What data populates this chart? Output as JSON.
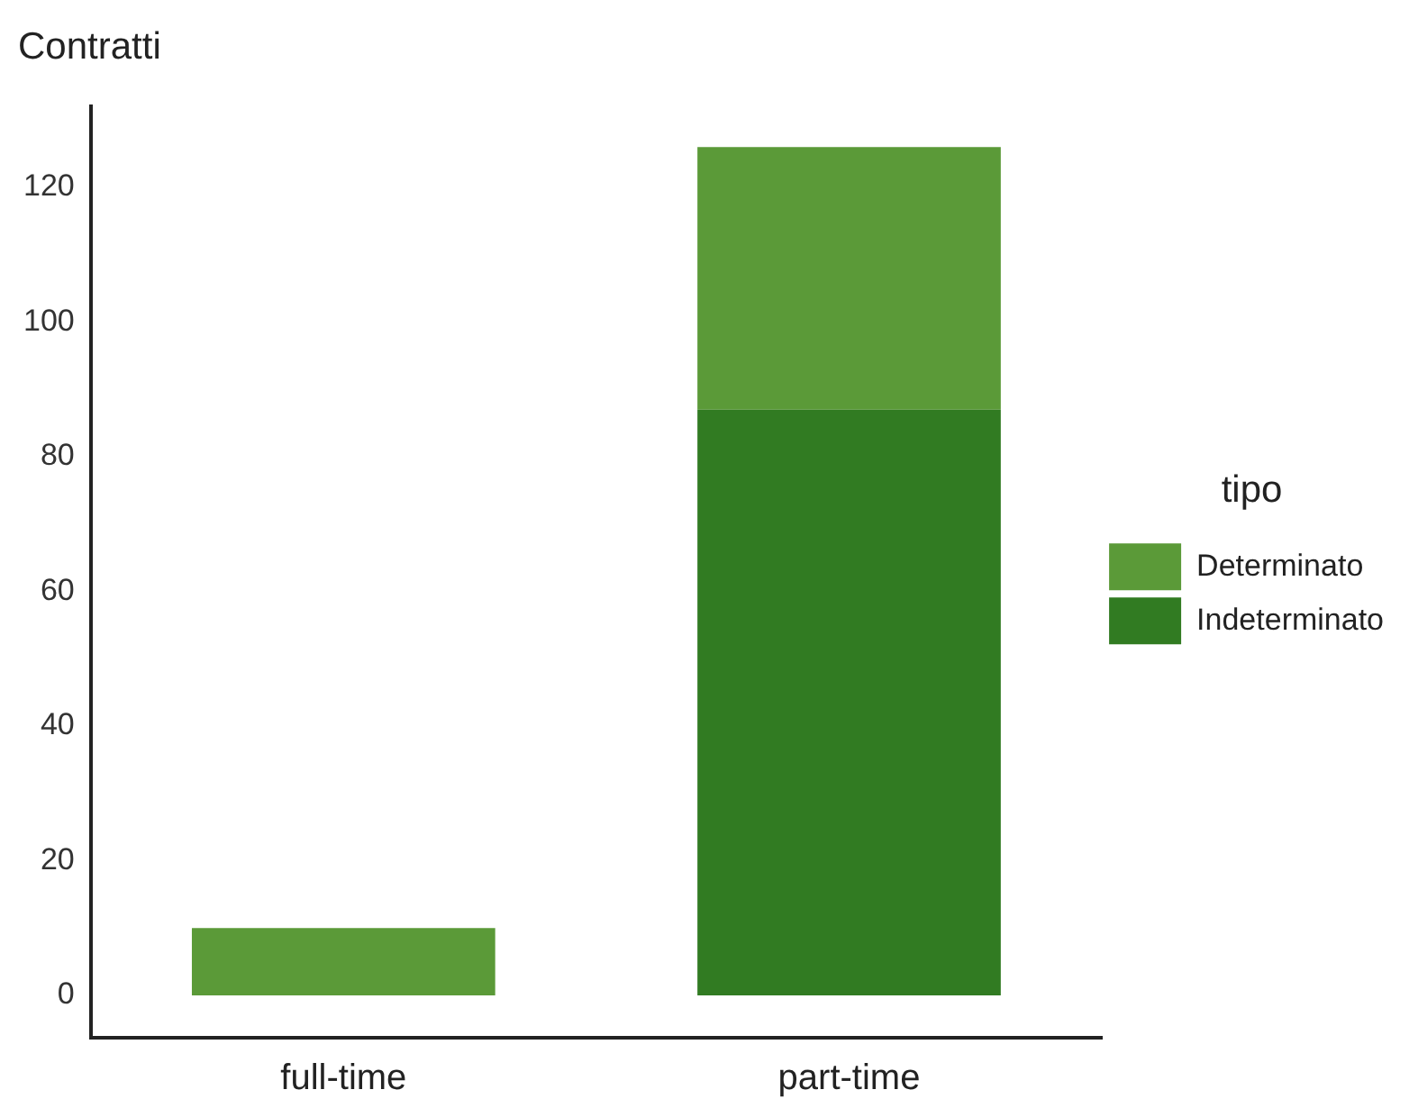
{
  "chart_data": {
    "type": "bar",
    "title": "Contratti",
    "categories": [
      "full-time",
      "part-time"
    ],
    "stacked": true,
    "series": [
      {
        "name": "Indeterminato",
        "color": "#317b22",
        "values": [
          0,
          87
        ]
      },
      {
        "name": "Determinato",
        "color": "#5b9a38",
        "values": [
          10,
          39
        ]
      }
    ],
    "legend_title": "tipo",
    "legend": "right",
    "grid": false,
    "ylim": [
      -6.3,
      132
    ],
    "yticks": [
      0,
      20,
      40,
      60,
      80,
      100,
      120
    ]
  }
}
